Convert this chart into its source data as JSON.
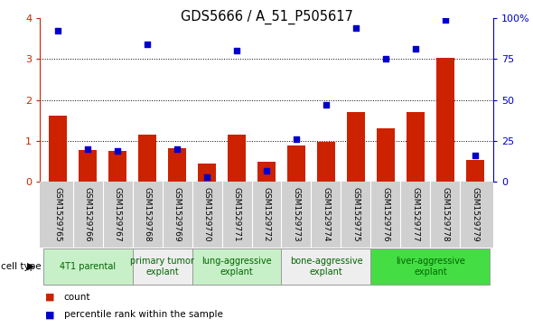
{
  "title": "GDS5666 / A_51_P505617",
  "samples": [
    "GSM1529765",
    "GSM1529766",
    "GSM1529767",
    "GSM1529768",
    "GSM1529769",
    "GSM1529770",
    "GSM1529771",
    "GSM1529772",
    "GSM1529773",
    "GSM1529774",
    "GSM1529775",
    "GSM1529776",
    "GSM1529777",
    "GSM1529778",
    "GSM1529779"
  ],
  "count_values": [
    1.63,
    0.78,
    0.76,
    1.15,
    0.82,
    0.46,
    1.15,
    0.5,
    0.9,
    0.97,
    1.7,
    1.3,
    1.7,
    3.03,
    0.55
  ],
  "percentile_values": [
    92,
    20,
    19,
    84,
    20,
    3,
    80,
    7,
    26,
    47,
    94,
    75,
    81,
    99,
    16
  ],
  "cell_type_groups": [
    {
      "label": "4T1 parental",
      "start": 0,
      "end": 2,
      "color": "#c8f0c8"
    },
    {
      "label": "primary tumor\nexplant",
      "start": 3,
      "end": 4,
      "color": "#eeeeee"
    },
    {
      "label": "lung-aggressive\nexplant",
      "start": 5,
      "end": 7,
      "color": "#c8f0c8"
    },
    {
      "label": "bone-aggressive\nexplant",
      "start": 8,
      "end": 10,
      "color": "#eeeeee"
    },
    {
      "label": "liver-aggressive\nexplant",
      "start": 11,
      "end": 14,
      "color": "#44dd44"
    }
  ],
  "bar_color": "#cc2200",
  "dot_color": "#0000cc",
  "left_ylim": [
    0,
    4
  ],
  "right_ylim": [
    0,
    100
  ],
  "left_yticks": [
    0,
    1,
    2,
    3,
    4
  ],
  "right_yticks": [
    0,
    25,
    50,
    75,
    100
  ],
  "right_yticklabels": [
    "0",
    "25",
    "50",
    "75",
    "100%"
  ],
  "left_color": "#cc2200",
  "right_color": "#0000cc",
  "sample_bg_color": "#d0d0d0",
  "plot_bg": "#ffffff",
  "legend_count_label": "count",
  "legend_pct_label": "percentile rank within the sample"
}
